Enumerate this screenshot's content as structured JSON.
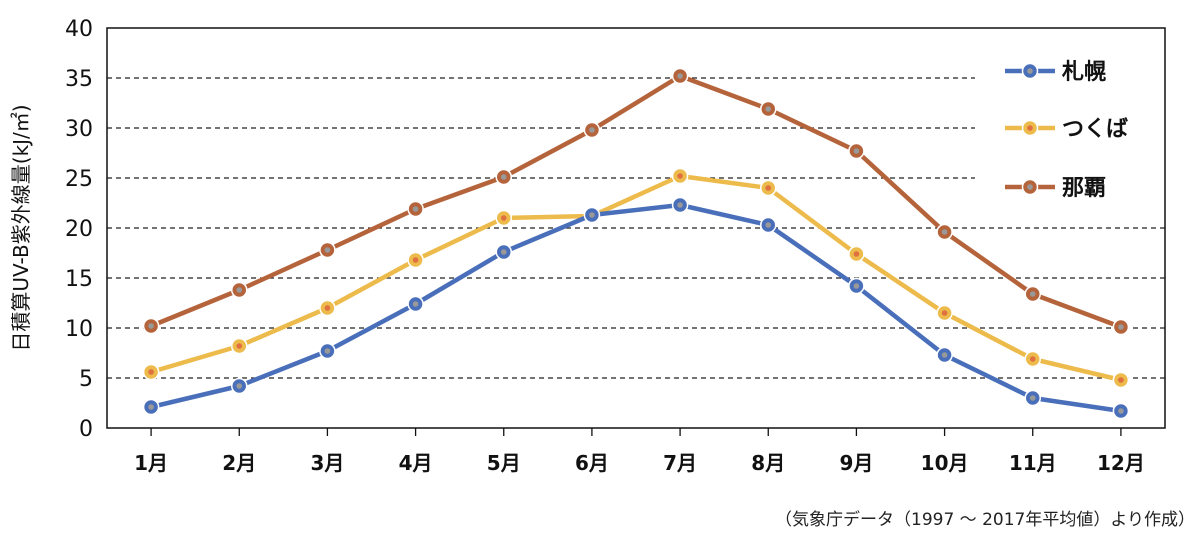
{
  "chart_data": {
    "type": "line",
    "categories": [
      "1月",
      "2月",
      "3月",
      "4月",
      "5月",
      "6月",
      "7月",
      "8月",
      "9月",
      "10月",
      "11月",
      "12月"
    ],
    "series": [
      {
        "name": "札幌",
        "color": "#4a6fba",
        "values": [
          2.1,
          4.2,
          7.7,
          12.4,
          17.6,
          21.3,
          22.3,
          20.3,
          14.2,
          7.3,
          3.0,
          1.7
        ]
      },
      {
        "name": "つくば",
        "color": "#edbb4c",
        "values": [
          5.6,
          8.2,
          12.0,
          16.8,
          21.0,
          21.2,
          25.2,
          24.0,
          17.4,
          11.5,
          6.9,
          4.8
        ]
      },
      {
        "name": "那覇",
        "color": "#b5633a",
        "values": [
          10.2,
          13.8,
          17.8,
          21.9,
          25.1,
          29.8,
          35.2,
          31.9,
          27.7,
          19.6,
          13.4,
          10.1
        ]
      }
    ],
    "yticks": [
      0,
      5,
      10,
      15,
      20,
      25,
      30,
      35,
      40
    ],
    "ylim": [
      0,
      40
    ],
    "ylabel": "日積算UV-B紫外線量(kJ/㎡)",
    "xlabel": "",
    "grid": "dashed horizontal",
    "legend": "top-right",
    "source": "（気象庁データ（1997 ～ 2017年平均値）より作成）"
  }
}
